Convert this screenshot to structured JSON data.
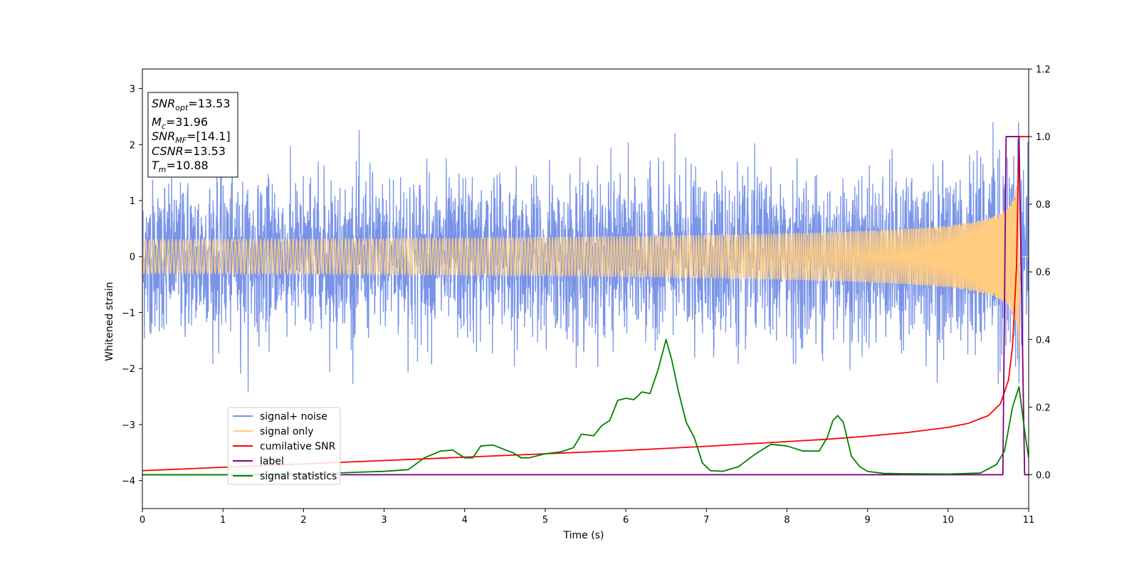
{
  "chart_data": {
    "type": "line",
    "title": "",
    "xlabel": "Time (s)",
    "ylabel": "Whitened strain",
    "xlim": [
      0,
      11
    ],
    "ylim": [
      -4.5,
      3.35
    ],
    "y2lim": [
      -0.1,
      1.2
    ],
    "xticks": [
      "0",
      "1",
      "2",
      "3",
      "4",
      "5",
      "6",
      "7",
      "8",
      "9",
      "10",
      "11"
    ],
    "yticks": [
      "3",
      "2",
      "1",
      "0",
      "−1",
      "−2",
      "−3",
      "−4"
    ],
    "y2ticks": [
      "1.2",
      "1.0",
      "0.8",
      "0.6",
      "0.4",
      "0.2",
      "0.0"
    ],
    "grid": false,
    "legend_position": "lower-left",
    "info_box": {
      "snr_opt": {
        "sym": "SNR",
        "sub": "opt",
        "value": "=13.53"
      },
      "mc": {
        "sym": "M",
        "sub": "c",
        "value": "=31.96"
      },
      "snr_mf": {
        "sym": "SNR",
        "sub": "MF",
        "value": "=[14.1]"
      },
      "csnr": {
        "sym": "CSNR",
        "value": "=13.53"
      },
      "tm": {
        "sym": "T",
        "sub": "m",
        "value": "=10.88"
      }
    },
    "series": [
      {
        "name": "signal+ noise",
        "color": "#7893e8",
        "axis": "left",
        "noise_amplitude": 1.0,
        "approx_range": [
          -2.6,
          2.4
        ]
      },
      {
        "name": "signal only",
        "color": "#ffcc80",
        "axis": "left",
        "chirp_peak_amplitude": 2.15,
        "merger_time": 10.88
      },
      {
        "name": "cumilative SNR",
        "color": "#ff0000",
        "axis": "right",
        "x": [
          0,
          1,
          2,
          3,
          4,
          5,
          6,
          7,
          8,
          8.5,
          9,
          9.5,
          10,
          10.25,
          10.5,
          10.65,
          10.75,
          10.8,
          10.85,
          10.88,
          11
        ],
        "y": [
          0.012,
          0.022,
          0.032,
          0.042,
          0.052,
          0.062,
          0.072,
          0.084,
          0.098,
          0.105,
          0.114,
          0.125,
          0.14,
          0.152,
          0.175,
          0.21,
          0.28,
          0.38,
          0.62,
          1.0,
          1.0
        ]
      },
      {
        "name": "label",
        "color": "#800080",
        "axis": "right",
        "x": [
          0,
          10.68,
          10.72,
          10.86,
          10.88,
          10.95,
          11
        ],
        "y": [
          0,
          0,
          1.0,
          1.0,
          1.0,
          0,
          0
        ]
      },
      {
        "name": "signal statistics",
        "color": "#008000",
        "axis": "right",
        "x": [
          0,
          0.5,
          1,
          1.5,
          2,
          2.5,
          3,
          3.3,
          3.5,
          3.7,
          3.85,
          4.0,
          4.1,
          4.2,
          4.35,
          4.5,
          4.6,
          4.7,
          4.8,
          5.0,
          5.2,
          5.35,
          5.45,
          5.6,
          5.7,
          5.8,
          5.9,
          6.0,
          6.1,
          6.2,
          6.3,
          6.4,
          6.5,
          6.57,
          6.65,
          6.75,
          6.85,
          6.95,
          7.05,
          7.2,
          7.4,
          7.6,
          7.8,
          8.0,
          8.2,
          8.4,
          8.5,
          8.57,
          8.63,
          8.7,
          8.8,
          8.9,
          9.0,
          9.2,
          9.5,
          10.0,
          10.4,
          10.6,
          10.7,
          10.8,
          10.88,
          10.95,
          11.0
        ],
        "y": [
          0.0,
          0.0,
          0.0,
          0.002,
          0.004,
          0.006,
          0.01,
          0.015,
          0.05,
          0.07,
          0.073,
          0.05,
          0.05,
          0.085,
          0.088,
          0.074,
          0.065,
          0.05,
          0.05,
          0.062,
          0.068,
          0.08,
          0.12,
          0.115,
          0.145,
          0.16,
          0.22,
          0.226,
          0.222,
          0.245,
          0.24,
          0.31,
          0.4,
          0.34,
          0.25,
          0.155,
          0.11,
          0.035,
          0.012,
          0.01,
          0.024,
          0.06,
          0.09,
          0.085,
          0.07,
          0.07,
          0.11,
          0.16,
          0.175,
          0.155,
          0.055,
          0.025,
          0.01,
          0.004,
          0.003,
          0.002,
          0.005,
          0.03,
          0.07,
          0.2,
          0.26,
          0.13,
          0.05
        ]
      }
    ]
  }
}
